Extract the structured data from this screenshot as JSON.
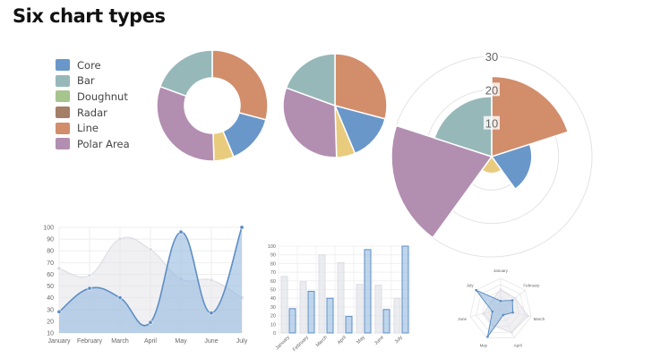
{
  "title": "Six chart types",
  "legend": [
    {
      "label": "Core",
      "color": "#6a97c9"
    },
    {
      "label": "Bar",
      "color": "#97b8b9"
    },
    {
      "label": "Doughnut",
      "color": "#a6c48d"
    },
    {
      "label": "Radar",
      "color": "#a47e66"
    },
    {
      "label": "Line",
      "color": "#d28d6b"
    },
    {
      "label": "Polar Area",
      "color": "#b28eb1"
    }
  ],
  "chart_data": [
    {
      "type": "doughnut",
      "values": [
        30,
        15,
        6,
        32,
        20
      ],
      "colors": [
        "#d28d6b",
        "#6a97c9",
        "#e9cb7e",
        "#b28eb1",
        "#97b8b9"
      ]
    },
    {
      "type": "pie",
      "values": [
        30,
        15,
        6,
        32,
        20
      ],
      "colors": [
        "#d28d6b",
        "#6a97c9",
        "#e9cb7e",
        "#b28eb1",
        "#97b8b9"
      ]
    },
    {
      "type": "polarArea",
      "values": [
        24,
        12,
        5,
        30,
        18
      ],
      "colors": [
        "#d28d6b",
        "#6a97c9",
        "#e9cb7e",
        "#b28eb1",
        "#97b8b9"
      ],
      "rlim": [
        0,
        30
      ],
      "ticks": [
        "10",
        "20",
        "30"
      ]
    },
    {
      "type": "line",
      "categories": [
        "January",
        "February",
        "March",
        "April",
        "May",
        "June",
        "July"
      ],
      "series": [
        {
          "values": [
            65,
            59,
            90,
            81,
            56,
            55,
            40
          ],
          "color": "#dcdde4"
        },
        {
          "values": [
            28,
            48,
            40,
            19,
            96,
            27,
            100
          ],
          "color": "#5d8ec3"
        }
      ],
      "ylim": [
        10,
        100
      ],
      "yticks": [
        "10",
        "20",
        "30",
        "40",
        "50",
        "60",
        "70",
        "80",
        "90",
        "100"
      ]
    },
    {
      "type": "bar",
      "categories": [
        "January",
        "February",
        "March",
        "April",
        "May",
        "June",
        "July"
      ],
      "series": [
        {
          "values": [
            65,
            59,
            90,
            81,
            56,
            55,
            40
          ],
          "color": "#dcdde4"
        },
        {
          "values": [
            28,
            48,
            40,
            19,
            96,
            27,
            100
          ],
          "color": "#5d8ec3"
        }
      ],
      "ylim": [
        0,
        100
      ],
      "yticks": [
        "0",
        "10",
        "20",
        "30",
        "40",
        "50",
        "60",
        "70",
        "80",
        "90",
        "100"
      ]
    },
    {
      "type": "radar",
      "categories": [
        "January",
        "February",
        "March",
        "April",
        "May",
        "June",
        "July"
      ],
      "series": [
        {
          "values": [
            65,
            59,
            90,
            81,
            56,
            55,
            40
          ],
          "color": "#dcdde4"
        },
        {
          "values": [
            28,
            48,
            40,
            19,
            96,
            27,
            100
          ],
          "color": "#5d8ec3"
        }
      ],
      "rlim": [
        0,
        100
      ]
    }
  ]
}
